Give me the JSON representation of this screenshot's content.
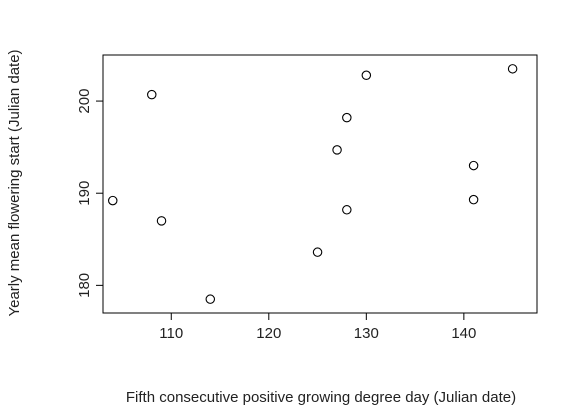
{
  "chart_data": {
    "type": "scatter",
    "title": "",
    "xlabel": "Fifth consecutive positive growing degree day (Julian date)",
    "ylabel": "Yearly mean flowering start (Julian date)",
    "xlim": [
      103,
      147.5
    ],
    "ylim": [
      177,
      205
    ],
    "x_ticks": [
      110,
      120,
      130,
      140
    ],
    "y_ticks": [
      180,
      190,
      200
    ],
    "grid": false,
    "legend": "none",
    "colors": {
      "point": "#000000",
      "axis": "#000000",
      "text": "#222222"
    },
    "points": [
      {
        "x": 104,
        "y": 189.2
      },
      {
        "x": 108,
        "y": 200.7
      },
      {
        "x": 109,
        "y": 187.0
      },
      {
        "x": 114,
        "y": 178.5
      },
      {
        "x": 125,
        "y": 183.6
      },
      {
        "x": 127,
        "y": 194.7
      },
      {
        "x": 128,
        "y": 198.2
      },
      {
        "x": 128,
        "y": 188.2
      },
      {
        "x": 130,
        "y": 202.8
      },
      {
        "x": 141,
        "y": 193.0
      },
      {
        "x": 141,
        "y": 189.3
      },
      {
        "x": 145,
        "y": 203.5
      }
    ]
  }
}
